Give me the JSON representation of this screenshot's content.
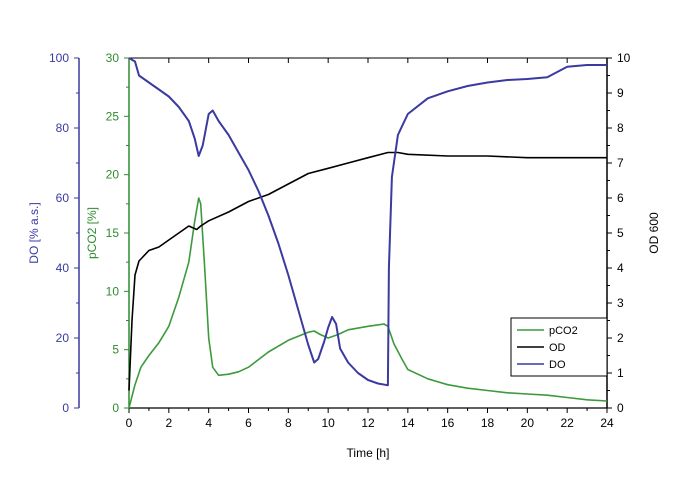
{
  "chart_data": {
    "type": "line",
    "title": "",
    "xlabel": "Time [h]",
    "xlim": [
      0,
      24
    ],
    "x_ticks": [
      0,
      2,
      4,
      6,
      8,
      10,
      12,
      14,
      16,
      18,
      20,
      22,
      24
    ],
    "grid": false,
    "legend": "bottom-right",
    "axes": {
      "do": {
        "label": "DO [% a.s.]",
        "ylim": [
          0,
          100
        ],
        "ticks": [
          0,
          20,
          40,
          60,
          80,
          100
        ],
        "color": "#3a3aa0",
        "position": "left-outer"
      },
      "pco2": {
        "label": "pCO2 [%]",
        "ylim": [
          0,
          30
        ],
        "ticks": [
          0,
          5,
          10,
          15,
          20,
          25,
          30
        ],
        "color": "#2e8b2e",
        "position": "left-inner"
      },
      "od": {
        "label": "OD 600",
        "ylim": [
          0,
          10
        ],
        "ticks": [
          0,
          1,
          2,
          3,
          4,
          5,
          6,
          7,
          8,
          9,
          10
        ],
        "color": "#000000",
        "position": "right"
      }
    },
    "series": [
      {
        "name": "pCO2",
        "axis": "pco2",
        "color": "#3c9a3c",
        "points": [
          [
            0,
            0
          ],
          [
            0.3,
            2
          ],
          [
            0.6,
            3.5
          ],
          [
            1,
            4.5
          ],
          [
            1.5,
            5.6
          ],
          [
            2,
            7
          ],
          [
            2.5,
            9.5
          ],
          [
            3,
            12.5
          ],
          [
            3.3,
            16
          ],
          [
            3.5,
            18
          ],
          [
            3.6,
            17.5
          ],
          [
            3.8,
            12
          ],
          [
            4,
            6
          ],
          [
            4.2,
            3.5
          ],
          [
            4.5,
            2.8
          ],
          [
            5,
            2.9
          ],
          [
            5.5,
            3.1
          ],
          [
            6,
            3.5
          ],
          [
            7,
            4.8
          ],
          [
            8,
            5.8
          ],
          [
            9,
            6.5
          ],
          [
            9.3,
            6.6
          ],
          [
            9.6,
            6.3
          ],
          [
            10,
            6
          ],
          [
            10.5,
            6.3
          ],
          [
            11,
            6.7
          ],
          [
            12,
            7
          ],
          [
            12.8,
            7.2
          ],
          [
            13,
            7.0
          ],
          [
            13.3,
            5.5
          ],
          [
            13.7,
            4.2
          ],
          [
            14,
            3.3
          ],
          [
            15,
            2.5
          ],
          [
            16,
            2.0
          ],
          [
            17,
            1.7
          ],
          [
            18,
            1.5
          ],
          [
            19,
            1.3
          ],
          [
            20,
            1.2
          ],
          [
            21,
            1.1
          ],
          [
            22,
            0.9
          ],
          [
            23,
            0.7
          ],
          [
            24,
            0.6
          ]
        ]
      },
      {
        "name": "OD",
        "axis": "od",
        "color": "#000000",
        "points": [
          [
            0,
            0.5
          ],
          [
            0.15,
            2.5
          ],
          [
            0.3,
            3.8
          ],
          [
            0.5,
            4.2
          ],
          [
            1,
            4.5
          ],
          [
            1.5,
            4.6
          ],
          [
            2,
            4.8
          ],
          [
            2.5,
            5.0
          ],
          [
            3,
            5.2
          ],
          [
            3.4,
            5.1
          ],
          [
            3.6,
            5.2
          ],
          [
            4,
            5.35
          ],
          [
            5,
            5.6
          ],
          [
            6,
            5.9
          ],
          [
            7,
            6.1
          ],
          [
            8,
            6.4
          ],
          [
            9,
            6.7
          ],
          [
            10,
            6.85
          ],
          [
            11,
            7.0
          ],
          [
            12,
            7.15
          ],
          [
            13,
            7.3
          ],
          [
            13.5,
            7.3
          ],
          [
            14,
            7.25
          ],
          [
            16,
            7.2
          ],
          [
            18,
            7.2
          ],
          [
            20,
            7.15
          ],
          [
            22,
            7.15
          ],
          [
            24,
            7.15
          ]
        ]
      },
      {
        "name": "DO",
        "axis": "do",
        "color": "#3a3aa0",
        "points": [
          [
            0,
            100
          ],
          [
            0.3,
            99
          ],
          [
            0.5,
            95
          ],
          [
            1,
            93
          ],
          [
            1.5,
            91
          ],
          [
            2,
            89
          ],
          [
            2.5,
            86
          ],
          [
            3,
            82
          ],
          [
            3.3,
            77
          ],
          [
            3.5,
            72
          ],
          [
            3.7,
            75
          ],
          [
            4,
            84
          ],
          [
            4.2,
            85
          ],
          [
            4.5,
            82
          ],
          [
            5,
            78
          ],
          [
            5.5,
            73
          ],
          [
            6,
            68
          ],
          [
            6.5,
            62
          ],
          [
            7,
            55
          ],
          [
            7.5,
            47
          ],
          [
            8,
            38
          ],
          [
            8.5,
            28
          ],
          [
            9,
            18
          ],
          [
            9.3,
            13
          ],
          [
            9.5,
            14
          ],
          [
            9.8,
            19
          ],
          [
            10,
            23
          ],
          [
            10.2,
            26
          ],
          [
            10.4,
            24
          ],
          [
            10.6,
            17
          ],
          [
            11,
            13
          ],
          [
            11.5,
            10
          ],
          [
            12,
            8
          ],
          [
            12.5,
            7
          ],
          [
            13,
            6.5
          ],
          [
            13.05,
            40
          ],
          [
            13.2,
            66
          ],
          [
            13.5,
            78
          ],
          [
            14,
            84
          ],
          [
            15,
            88.5
          ],
          [
            16,
            90.5
          ],
          [
            17,
            92
          ],
          [
            18,
            93
          ],
          [
            19,
            93.7
          ],
          [
            20,
            94
          ],
          [
            21,
            94.5
          ],
          [
            21.5,
            96
          ],
          [
            22,
            97.5
          ],
          [
            23,
            98
          ],
          [
            24,
            98
          ]
        ]
      }
    ]
  }
}
